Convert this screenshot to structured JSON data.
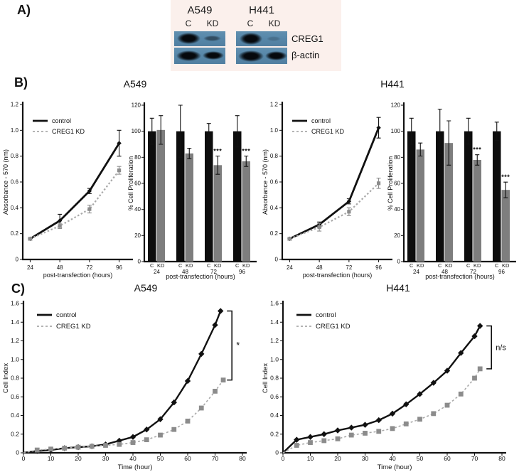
{
  "colors": {
    "control": "#111111",
    "kd_line": "#a9a9a9",
    "kd_marker": "#8c8c8c",
    "bar_c": "#0d0d0d",
    "bar_kd": "#7e7e7e",
    "axis": "#111111",
    "membrane": "#5787a9",
    "panel_a_bg": "#fbf0ec"
  },
  "panel_a": {
    "label": "A)",
    "row_labels": [
      "CREG1",
      "β-actin"
    ],
    "blots": [
      {
        "cell_line": "A549",
        "lanes": [
          "C",
          "KD"
        ]
      },
      {
        "cell_line": "H441",
        "lanes": [
          "C",
          "KD"
        ]
      }
    ]
  },
  "panel_b": {
    "label": "B)",
    "titles": [
      "A549",
      "H441"
    ]
  },
  "panel_c": {
    "label": "C)",
    "titles": [
      "A549",
      "H441"
    ]
  },
  "chart_data": [
    {
      "id": "b_a549_mtt",
      "kind": "mtt_line",
      "type": "line",
      "cell_line": "A549",
      "xlabel": "post-transfection (hours)",
      "ylabel": "Absorbance - 570 (nm)",
      "xlim": [
        18,
        102
      ],
      "xticks": [
        24,
        48,
        72,
        96
      ],
      "ylim": [
        0,
        1.2
      ],
      "yticks": [
        0,
        0.2,
        0.4,
        0.6,
        0.8,
        1.0,
        1.2
      ],
      "legend": [
        "control",
        "CREG1 KD"
      ],
      "series": [
        {
          "name": "control",
          "marker": "diamond",
          "x": [
            24,
            48,
            72,
            96
          ],
          "y": [
            0.16,
            0.3,
            0.53,
            0.9
          ],
          "err": [
            0.01,
            0.05,
            0.02,
            0.1
          ]
        },
        {
          "name": "CREG1 KD",
          "marker": "square",
          "x": [
            24,
            48,
            72,
            96
          ],
          "y": [
            0.16,
            0.26,
            0.39,
            0.69
          ],
          "err": [
            0.01,
            0.02,
            0.03,
            0.03
          ]
        }
      ]
    },
    {
      "id": "b_a549_prolif",
      "kind": "prolif_bar",
      "type": "bar",
      "cell_line": "A549",
      "xlabel": "post-transfection (hours)",
      "ylabel": "% Cell Proliferation",
      "ylim": [
        0,
        120
      ],
      "yticks": [
        0,
        20,
        40,
        60,
        80,
        100,
        120
      ],
      "categories": [
        "24",
        "48",
        "72",
        "96"
      ],
      "bar_labels": [
        "C",
        "KD"
      ],
      "series": [
        {
          "name": "C",
          "values": [
            100,
            100,
            100,
            100
          ],
          "err": [
            10,
            20,
            6,
            12
          ]
        },
        {
          "name": "KD",
          "values": [
            101,
            83,
            74,
            77
          ],
          "err": [
            11,
            4,
            7,
            4
          ]
        }
      ],
      "significance": [
        {
          "category_index": 2,
          "series": "KD",
          "label": "***"
        },
        {
          "category_index": 3,
          "series": "KD",
          "label": "***"
        }
      ]
    },
    {
      "id": "b_h441_mtt",
      "kind": "mtt_line",
      "type": "line",
      "cell_line": "H441",
      "xlabel": "post-transfection (hours)",
      "ylabel": "Absorbance - 570 (nm)",
      "xlim": [
        18,
        102
      ],
      "xticks": [
        24,
        48,
        72,
        96
      ],
      "ylim": [
        0,
        1.2
      ],
      "yticks": [
        0,
        0.2,
        0.4,
        0.6,
        0.8,
        1.0,
        1.2
      ],
      "legend": [
        "control",
        "CREG1 KD"
      ],
      "series": [
        {
          "name": "control",
          "marker": "diamond",
          "x": [
            24,
            48,
            72,
            96
          ],
          "y": [
            0.16,
            0.27,
            0.45,
            1.02
          ],
          "err": [
            0.01,
            0.02,
            0.02,
            0.08
          ]
        },
        {
          "name": "CREG1 KD",
          "marker": "square",
          "x": [
            24,
            48,
            72,
            96
          ],
          "y": [
            0.16,
            0.25,
            0.37,
            0.59
          ],
          "err": [
            0.01,
            0.03,
            0.03,
            0.04
          ]
        }
      ]
    },
    {
      "id": "b_h441_prolif",
      "kind": "prolif_bar",
      "type": "bar",
      "cell_line": "H441",
      "xlabel": "post-transfection (hours)",
      "ylabel": "% Cell Proliferation",
      "ylim": [
        0,
        120
      ],
      "yticks": [
        0,
        20,
        40,
        60,
        80,
        100,
        120
      ],
      "categories": [
        "24",
        "48",
        "72",
        "96"
      ],
      "bar_labels": [
        "C",
        "KD"
      ],
      "series": [
        {
          "name": "C",
          "values": [
            100,
            100,
            100,
            100
          ],
          "err": [
            10,
            17,
            10,
            7
          ]
        },
        {
          "name": "KD",
          "values": [
            86,
            91,
            78,
            55
          ],
          "err": [
            5,
            17,
            4,
            6
          ]
        }
      ],
      "significance": [
        {
          "category_index": 2,
          "series": "KD",
          "label": "***"
        },
        {
          "category_index": 3,
          "series": "KD",
          "label": "***"
        }
      ]
    },
    {
      "id": "c_a549_rtca",
      "kind": "rtca_line",
      "type": "line",
      "cell_line": "A549",
      "xlabel": "Time (hour)",
      "ylabel": "Cell Index",
      "xlim": [
        0,
        80
      ],
      "xticks": [
        0,
        10,
        20,
        30,
        40,
        50,
        60,
        70,
        80
      ],
      "ylim": [
        0,
        1.6
      ],
      "yticks": [
        0,
        0.2,
        0.4,
        0.6,
        0.8,
        1.0,
        1.2,
        1.4,
        1.6
      ],
      "legend": [
        "control",
        "CREG1 KD"
      ],
      "significance": "*",
      "series": [
        {
          "name": "control",
          "marker": "diamond",
          "x": [
            0,
            5,
            10,
            15,
            20,
            25,
            30,
            35,
            40,
            45,
            50,
            55,
            60,
            65,
            70,
            72
          ],
          "y": [
            0,
            0.02,
            0.03,
            0.05,
            0.06,
            0.07,
            0.09,
            0.13,
            0.17,
            0.25,
            0.36,
            0.54,
            0.77,
            1.06,
            1.37,
            1.52
          ]
        },
        {
          "name": "CREG1 KD",
          "marker": "square",
          "x": [
            0,
            5,
            10,
            15,
            20,
            25,
            30,
            35,
            40,
            45,
            50,
            55,
            60,
            65,
            70,
            73
          ],
          "y": [
            0,
            0.03,
            0.04,
            0.05,
            0.06,
            0.07,
            0.08,
            0.09,
            0.11,
            0.14,
            0.19,
            0.25,
            0.34,
            0.48,
            0.66,
            0.78
          ]
        }
      ]
    },
    {
      "id": "c_h441_rtca",
      "kind": "rtca_line",
      "type": "line",
      "cell_line": "H441",
      "xlabel": "Time (hour)",
      "ylabel": "Cell Index",
      "xlim": [
        0,
        80
      ],
      "xticks": [
        0,
        10,
        20,
        30,
        40,
        50,
        60,
        70,
        80
      ],
      "ylim": [
        0,
        1.6
      ],
      "yticks": [
        0,
        0.2,
        0.4,
        0.6,
        0.8,
        1.0,
        1.2,
        1.4,
        1.6
      ],
      "legend": [
        "control",
        "CREG1 KD"
      ],
      "significance": "n/s",
      "series": [
        {
          "name": "control",
          "marker": "diamond",
          "x": [
            0,
            5,
            10,
            15,
            20,
            25,
            30,
            35,
            40,
            45,
            50,
            55,
            60,
            65,
            70,
            72
          ],
          "y": [
            0,
            0.14,
            0.17,
            0.2,
            0.24,
            0.27,
            0.3,
            0.35,
            0.42,
            0.52,
            0.63,
            0.75,
            0.88,
            1.07,
            1.25,
            1.36
          ]
        },
        {
          "name": "CREG1 KD",
          "marker": "square",
          "x": [
            0,
            5,
            10,
            15,
            20,
            25,
            30,
            35,
            40,
            45,
            50,
            55,
            60,
            65,
            70,
            72
          ],
          "y": [
            0,
            0.08,
            0.11,
            0.13,
            0.15,
            0.19,
            0.21,
            0.23,
            0.26,
            0.31,
            0.36,
            0.42,
            0.51,
            0.63,
            0.8,
            0.9
          ]
        }
      ]
    }
  ]
}
